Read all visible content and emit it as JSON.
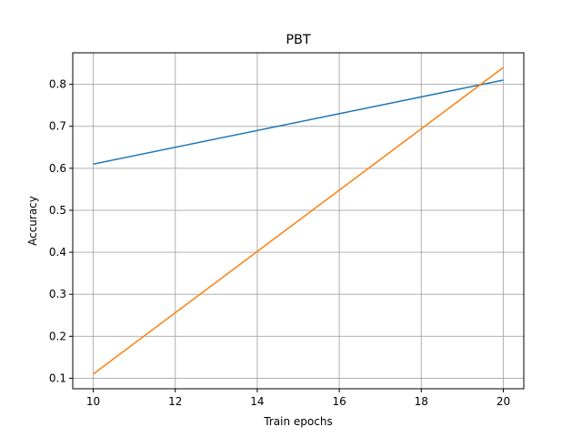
{
  "chart_data": {
    "type": "line",
    "title": "PBT",
    "xlabel": "Train epochs",
    "ylabel": "Accuracy",
    "xlim": [
      9.5,
      20.5
    ],
    "ylim": [
      0.075,
      0.875
    ],
    "xticks": [
      10,
      12,
      14,
      16,
      18,
      20
    ],
    "yticks": [
      0.1,
      0.2,
      0.3,
      0.4,
      0.5,
      0.6,
      0.7,
      0.8
    ],
    "xtick_labels": [
      "10",
      "12",
      "14",
      "16",
      "18",
      "20"
    ],
    "ytick_labels": [
      "0.1",
      "0.2",
      "0.3",
      "0.4",
      "0.5",
      "0.6",
      "0.7",
      "0.8"
    ],
    "grid": true,
    "series": [
      {
        "name": "series-1",
        "color": "#1f77b4",
        "x": [
          10,
          20
        ],
        "y": [
          0.61,
          0.81
        ]
      },
      {
        "name": "series-2",
        "color": "#ff7f0e",
        "x": [
          10,
          20
        ],
        "y": [
          0.11,
          0.84
        ]
      }
    ]
  }
}
